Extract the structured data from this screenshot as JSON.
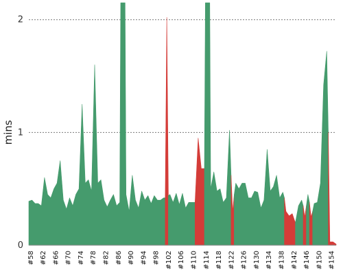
{
  "chart_data": {
    "type": "area",
    "title": "",
    "xlabel": "",
    "ylabel": "mins",
    "ylim": [
      0,
      2.15
    ],
    "yticks": [
      "0",
      "1",
      "2"
    ],
    "ytick_values": [
      0,
      1,
      2
    ],
    "grid": true,
    "colors": {
      "pass": "#459b6d",
      "fail": "#d43c38"
    },
    "x_start": 58,
    "x_end": 155,
    "tick_every": 4,
    "tick_prefix": "#",
    "series": [
      {
        "status": "pass",
        "points": [
          [
            58,
            0.39
          ],
          [
            59,
            0.4
          ],
          [
            60,
            0.37
          ],
          [
            61,
            0.37
          ],
          [
            62,
            0.35
          ],
          [
            63,
            0.6
          ],
          [
            64,
            0.45
          ],
          [
            65,
            0.42
          ],
          [
            66,
            0.5
          ],
          [
            67,
            0.55
          ],
          [
            68,
            0.75
          ],
          [
            69,
            0.4
          ],
          [
            70,
            0.32
          ],
          [
            71,
            0.42
          ],
          [
            72,
            0.35
          ],
          [
            73,
            0.45
          ],
          [
            74,
            0.5
          ],
          [
            75,
            1.25
          ],
          [
            76,
            0.55
          ],
          [
            77,
            0.58
          ],
          [
            78,
            0.48
          ],
          [
            79,
            1.6
          ],
          [
            80,
            0.55
          ],
          [
            81,
            0.58
          ],
          [
            82,
            0.4
          ],
          [
            83,
            0.34
          ],
          [
            84,
            0.4
          ],
          [
            85,
            0.45
          ],
          [
            86,
            0.35
          ],
          [
            87,
            0.38
          ],
          [
            87.3,
            2.15
          ],
          [
            88.7,
            2.15
          ],
          [
            89,
            0.45
          ],
          [
            90,
            0.3
          ],
          [
            91,
            0.62
          ],
          [
            92,
            0.4
          ],
          [
            93,
            0.33
          ],
          [
            94,
            0.48
          ],
          [
            95,
            0.4
          ],
          [
            96,
            0.44
          ],
          [
            97,
            0.37
          ],
          [
            98,
            0.44
          ],
          [
            99,
            0.4
          ],
          [
            100,
            0.4
          ],
          [
            101,
            0.42
          ],
          [
            101.5,
            0.42
          ]
        ]
      },
      {
        "status": "fail",
        "points": [
          [
            101.5,
            0.42
          ],
          [
            102,
            2.02
          ],
          [
            102.5,
            0.44
          ]
        ]
      },
      {
        "status": "pass",
        "points": [
          [
            102.5,
            0.44
          ],
          [
            103,
            0.45
          ],
          [
            104,
            0.38
          ],
          [
            105,
            0.46
          ],
          [
            106,
            0.36
          ],
          [
            107,
            0.46
          ],
          [
            108,
            0.33
          ],
          [
            109,
            0.38
          ],
          [
            110,
            0.38
          ],
          [
            111,
            0.38
          ]
        ]
      },
      {
        "status": "fail",
        "points": [
          [
            111,
            0.38
          ],
          [
            112,
            0.95
          ],
          [
            113,
            0.68
          ],
          [
            114,
            0.68
          ]
        ]
      },
      {
        "status": "pass",
        "points": [
          [
            114,
            0.68
          ],
          [
            114.3,
            2.15
          ],
          [
            115.7,
            2.15
          ],
          [
            116,
            0.5
          ],
          [
            117,
            0.65
          ],
          [
            118,
            0.48
          ],
          [
            119,
            0.5
          ],
          [
            120,
            0.38
          ],
          [
            121,
            0.42
          ],
          [
            122,
            1.02
          ],
          [
            122.5,
            0.62
          ]
        ]
      },
      {
        "status": "fail",
        "points": [
          [
            122.5,
            0.62
          ],
          [
            123,
            0.3
          ],
          [
            123.5,
            0.45
          ]
        ]
      },
      {
        "status": "pass",
        "points": [
          [
            123.5,
            0.45
          ],
          [
            124,
            0.55
          ],
          [
            125,
            0.5
          ],
          [
            126,
            0.55
          ],
          [
            127,
            0.55
          ],
          [
            128,
            0.42
          ],
          [
            129,
            0.42
          ],
          [
            130,
            0.48
          ],
          [
            131,
            0.47
          ],
          [
            132,
            0.33
          ],
          [
            133,
            0.4
          ],
          [
            134,
            0.85
          ],
          [
            135,
            0.48
          ],
          [
            136,
            0.52
          ],
          [
            137,
            0.62
          ],
          [
            138,
            0.42
          ],
          [
            139,
            0.47
          ],
          [
            139.5,
            0.42
          ]
        ]
      },
      {
        "status": "fail",
        "points": [
          [
            139.5,
            0.42
          ],
          [
            140,
            0.3
          ],
          [
            141,
            0.26
          ],
          [
            142,
            0.28
          ],
          [
            143,
            0.2
          ]
        ]
      },
      {
        "status": "pass",
        "points": [
          [
            143,
            0.2
          ],
          [
            144,
            0.35
          ],
          [
            145,
            0.4
          ],
          [
            145.5,
            0.35
          ]
        ]
      },
      {
        "status": "fail",
        "points": [
          [
            145.5,
            0.35
          ],
          [
            146,
            0.25
          ],
          [
            146.5,
            0.35
          ]
        ]
      },
      {
        "status": "pass",
        "points": [
          [
            146.5,
            0.35
          ],
          [
            147,
            0.45
          ],
          [
            147.5,
            0.38
          ]
        ]
      },
      {
        "status": "fail",
        "points": [
          [
            147.5,
            0.38
          ],
          [
            148,
            0.25
          ],
          [
            148.5,
            0.3
          ]
        ]
      },
      {
        "status": "pass",
        "points": [
          [
            148.5,
            0.3
          ],
          [
            149,
            0.37
          ],
          [
            150,
            0.38
          ],
          [
            151,
            0.55
          ],
          [
            152,
            1.42
          ],
          [
            153,
            1.72
          ],
          [
            153.5,
            1.0
          ]
        ]
      },
      {
        "status": "fail",
        "points": [
          [
            153.5,
            1.0
          ],
          [
            154,
            0.03
          ],
          [
            155,
            0.03
          ],
          [
            156,
            0.01
          ]
        ]
      }
    ]
  }
}
